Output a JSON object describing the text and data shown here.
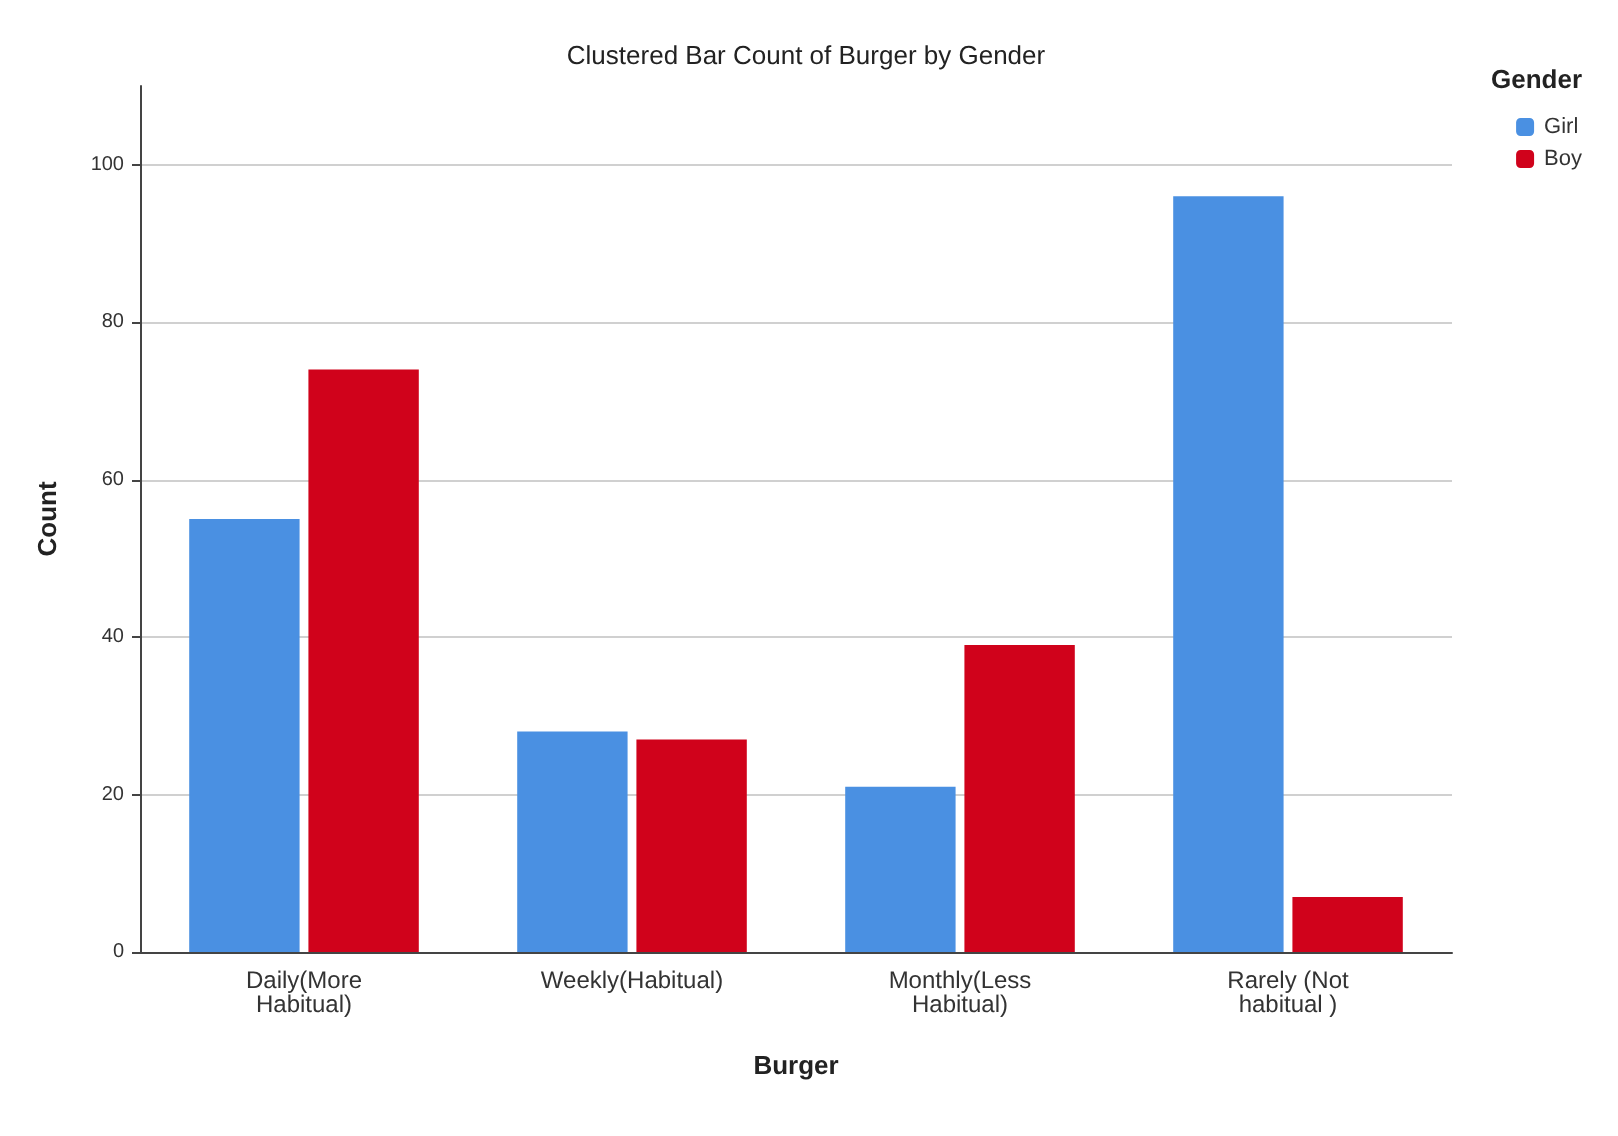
{
  "chart_data": {
    "type": "bar",
    "title": "Clustered Bar Count of Burger by Gender",
    "xlabel": "Burger",
    "ylabel": "Count",
    "legend_title": "Gender",
    "categories": [
      "Daily(More\nHabitual)",
      "Weekly(Habitual)",
      "Monthly(Less\nHabitual)",
      "Rarely (Not\nhabitual )"
    ],
    "series": [
      {
        "name": "Girl",
        "color": "#4a90e2",
        "values": [
          55,
          28,
          21,
          96
        ]
      },
      {
        "name": "Boy",
        "color": "#d0021b",
        "values": [
          74,
          27,
          39,
          7
        ]
      }
    ],
    "ylim": [
      0,
      110
    ],
    "yticks": [
      0,
      20,
      40,
      60,
      80,
      100
    ],
    "grid": "y",
    "legend": "top right"
  }
}
